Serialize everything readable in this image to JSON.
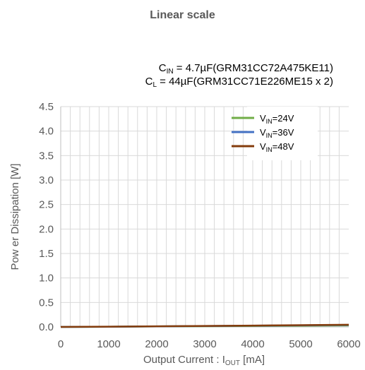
{
  "page_title": "Linear scale",
  "conditions": [
    {
      "symbol": "C",
      "sub": "IN",
      "text": " = 4.7µF(GRM31CC72A475KE11)"
    },
    {
      "symbol": "C",
      "sub": "L",
      "text": " = 44µF(GRM31CC71E226ME15   x 2)"
    }
  ],
  "chart_data": {
    "type": "line",
    "xlabel": {
      "main": "Output Current : I",
      "sub": "OUT",
      "suffix": " [mA]"
    },
    "ylabel": "Pow er Dissipation [W]",
    "xlim": [
      0,
      6000
    ],
    "ylim": [
      0,
      4.5
    ],
    "x_ticks": [
      0,
      1000,
      2000,
      3000,
      4000,
      5000,
      6000
    ],
    "y_ticks": [
      0.0,
      0.5,
      1.0,
      1.5,
      2.0,
      2.5,
      3.0,
      3.5,
      4.0,
      4.5
    ],
    "x_tick_labels": [
      "0",
      "1000",
      "2000",
      "3000",
      "4000",
      "5000",
      "6000"
    ],
    "y_tick_labels": [
      "0.0",
      "0.5",
      "1.0",
      "1.5",
      "2.0",
      "2.5",
      "3.0",
      "3.5",
      "4.0",
      "4.5"
    ],
    "grid": true,
    "legend_position": "top-right",
    "series": [
      {
        "name": "V",
        "name_sub": "IN",
        "name_suffix": "=24V",
        "color": "#70ad47",
        "x": [
          0,
          1000,
          2000,
          3000,
          4000,
          5000,
          6000
        ],
        "y": [
          0.0,
          0.005,
          0.01,
          0.015,
          0.02,
          0.025,
          0.03
        ]
      },
      {
        "name": "V",
        "name_sub": "IN",
        "name_suffix": "=36V",
        "color": "#4472c4",
        "x": [
          0,
          1000,
          2000,
          3000,
          4000,
          5000,
          6000
        ],
        "y": [
          0.0,
          0.005,
          0.012,
          0.018,
          0.024,
          0.032,
          0.04
        ]
      },
      {
        "name": "V",
        "name_sub": "IN",
        "name_suffix": "=48V",
        "color": "#843c0c",
        "x": [
          0,
          1000,
          2000,
          3000,
          4000,
          5000,
          6000
        ],
        "y": [
          0.0,
          0.006,
          0.013,
          0.02,
          0.027,
          0.036,
          0.045
        ]
      }
    ]
  }
}
